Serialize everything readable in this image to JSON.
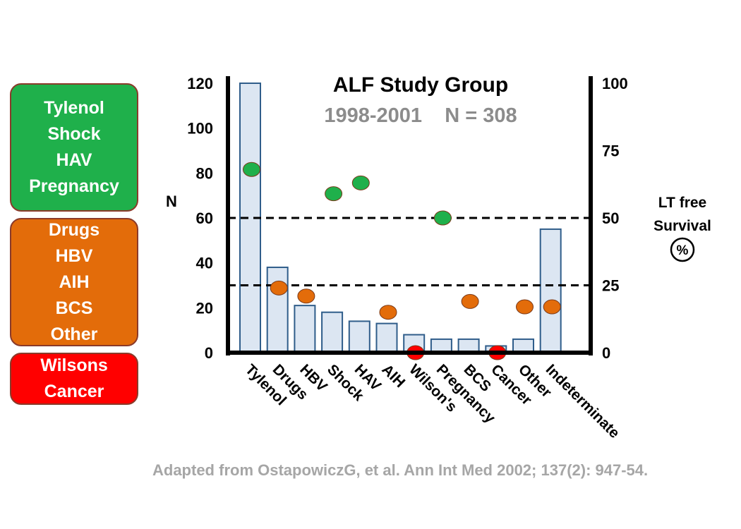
{
  "legend_groups": [
    {
      "items": [
        "Tylenol",
        "Shock",
        "HAV",
        "Pregnancy"
      ],
      "color": "#1fb04b"
    },
    {
      "items": [
        "Drugs",
        "HBV",
        "AIH",
        "BCS",
        "Other"
      ],
      "color": "#e36c0a"
    },
    {
      "items": [
        "Wilsons",
        "Cancer"
      ],
      "color": "#ff0000"
    }
  ],
  "footnote": "Adapted from OstapowiczG, et al. Ann Int Med 2002; 137(2): 947-54.",
  "chart_data": {
    "type": "bar",
    "title": "ALF Study Group",
    "subtitle": "1998-2001    N = 308",
    "categories": [
      "Tylenol",
      "Drugs",
      "HBV",
      "Shock",
      "HAV",
      "AIH",
      "Wilson's",
      "Pregnancy",
      "BCS",
      "Cancer",
      "Other",
      "Indeterminate"
    ],
    "values": [
      120,
      38,
      21,
      18,
      14,
      13,
      8,
      6,
      6,
      3,
      6,
      55
    ],
    "ylabel": "N",
    "ylim": [
      0,
      120
    ],
    "yticks": [
      0,
      20,
      40,
      60,
      80,
      100,
      120
    ],
    "y2label_lines": [
      "LT free",
      "Survival"
    ],
    "y2unit": "%",
    "y2lim": [
      0,
      100
    ],
    "y2ticks": [
      0,
      25,
      50,
      75,
      100
    ],
    "survival_series": {
      "values": [
        68,
        24,
        21,
        59,
        63,
        15,
        0,
        50,
        19,
        0,
        17,
        17
      ],
      "colors": [
        "#1fb04b",
        "#e36c0a",
        "#e36c0a",
        "#1fb04b",
        "#1fb04b",
        "#e36c0a",
        "#ff0000",
        "#1fb04b",
        "#e36c0a",
        "#ff0000",
        "#e36c0a",
        "#e36c0a"
      ]
    },
    "reference_lines_y2": [
      50,
      25
    ],
    "bar_fill": "#dce6f2",
    "bar_stroke": "#2f5d8a",
    "grid": false
  }
}
